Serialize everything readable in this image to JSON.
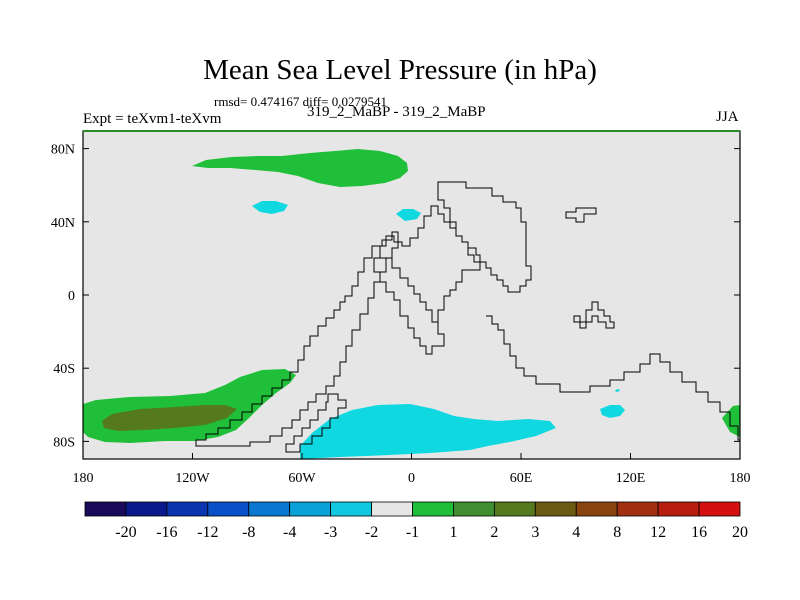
{
  "title": "Mean Sea Level Pressure (in hPa)",
  "stats": "rmsd= 0.474167 diff= 0.0279541",
  "left_label": "Expt = teXvm1-teXvm",
  "center_label": "319_2_MaBP - 319_2_MaBP",
  "right_label": "JJA",
  "y_ticks": [
    {
      "value": 80,
      "label": "80N"
    },
    {
      "value": 40,
      "label": "40N"
    },
    {
      "value": 0,
      "label": "0"
    },
    {
      "value": -40,
      "label": "40S"
    },
    {
      "value": -80,
      "label": "80S"
    }
  ],
  "x_ticks": [
    {
      "value": -180,
      "label": "180"
    },
    {
      "value": -120,
      "label": "120W"
    },
    {
      "value": -60,
      "label": "60W"
    },
    {
      "value": 0,
      "label": "0"
    },
    {
      "value": 60,
      "label": "60E"
    },
    {
      "value": 120,
      "label": "120E"
    },
    {
      "value": 180,
      "label": "180"
    }
  ],
  "legend": {
    "colors": [
      "#1a0a5a",
      "#0a1a8c",
      "#0a34b0",
      "#0a50c8",
      "#0a78d0",
      "#0aa0d8",
      "#10c8e0",
      "#e6e6e6",
      "#1fbf3a",
      "#3f8f30",
      "#557a1d",
      "#6b5a12",
      "#8a4410",
      "#a0300f",
      "#b81e10",
      "#d41010"
    ],
    "labels": [
      "-20",
      "-16",
      "-12",
      "-8",
      "-4",
      "-3",
      "-2",
      "-1",
      "1",
      "2",
      "3",
      "4",
      "8",
      "12",
      "16",
      "20"
    ]
  },
  "colors": {
    "background_field": "#e6e6e6",
    "positive_fill": "#1fbf3a",
    "strong_positive_fill": "#557a1d",
    "negative_fill": "#10d8e0",
    "frame_top": "#2a8a2a"
  }
}
